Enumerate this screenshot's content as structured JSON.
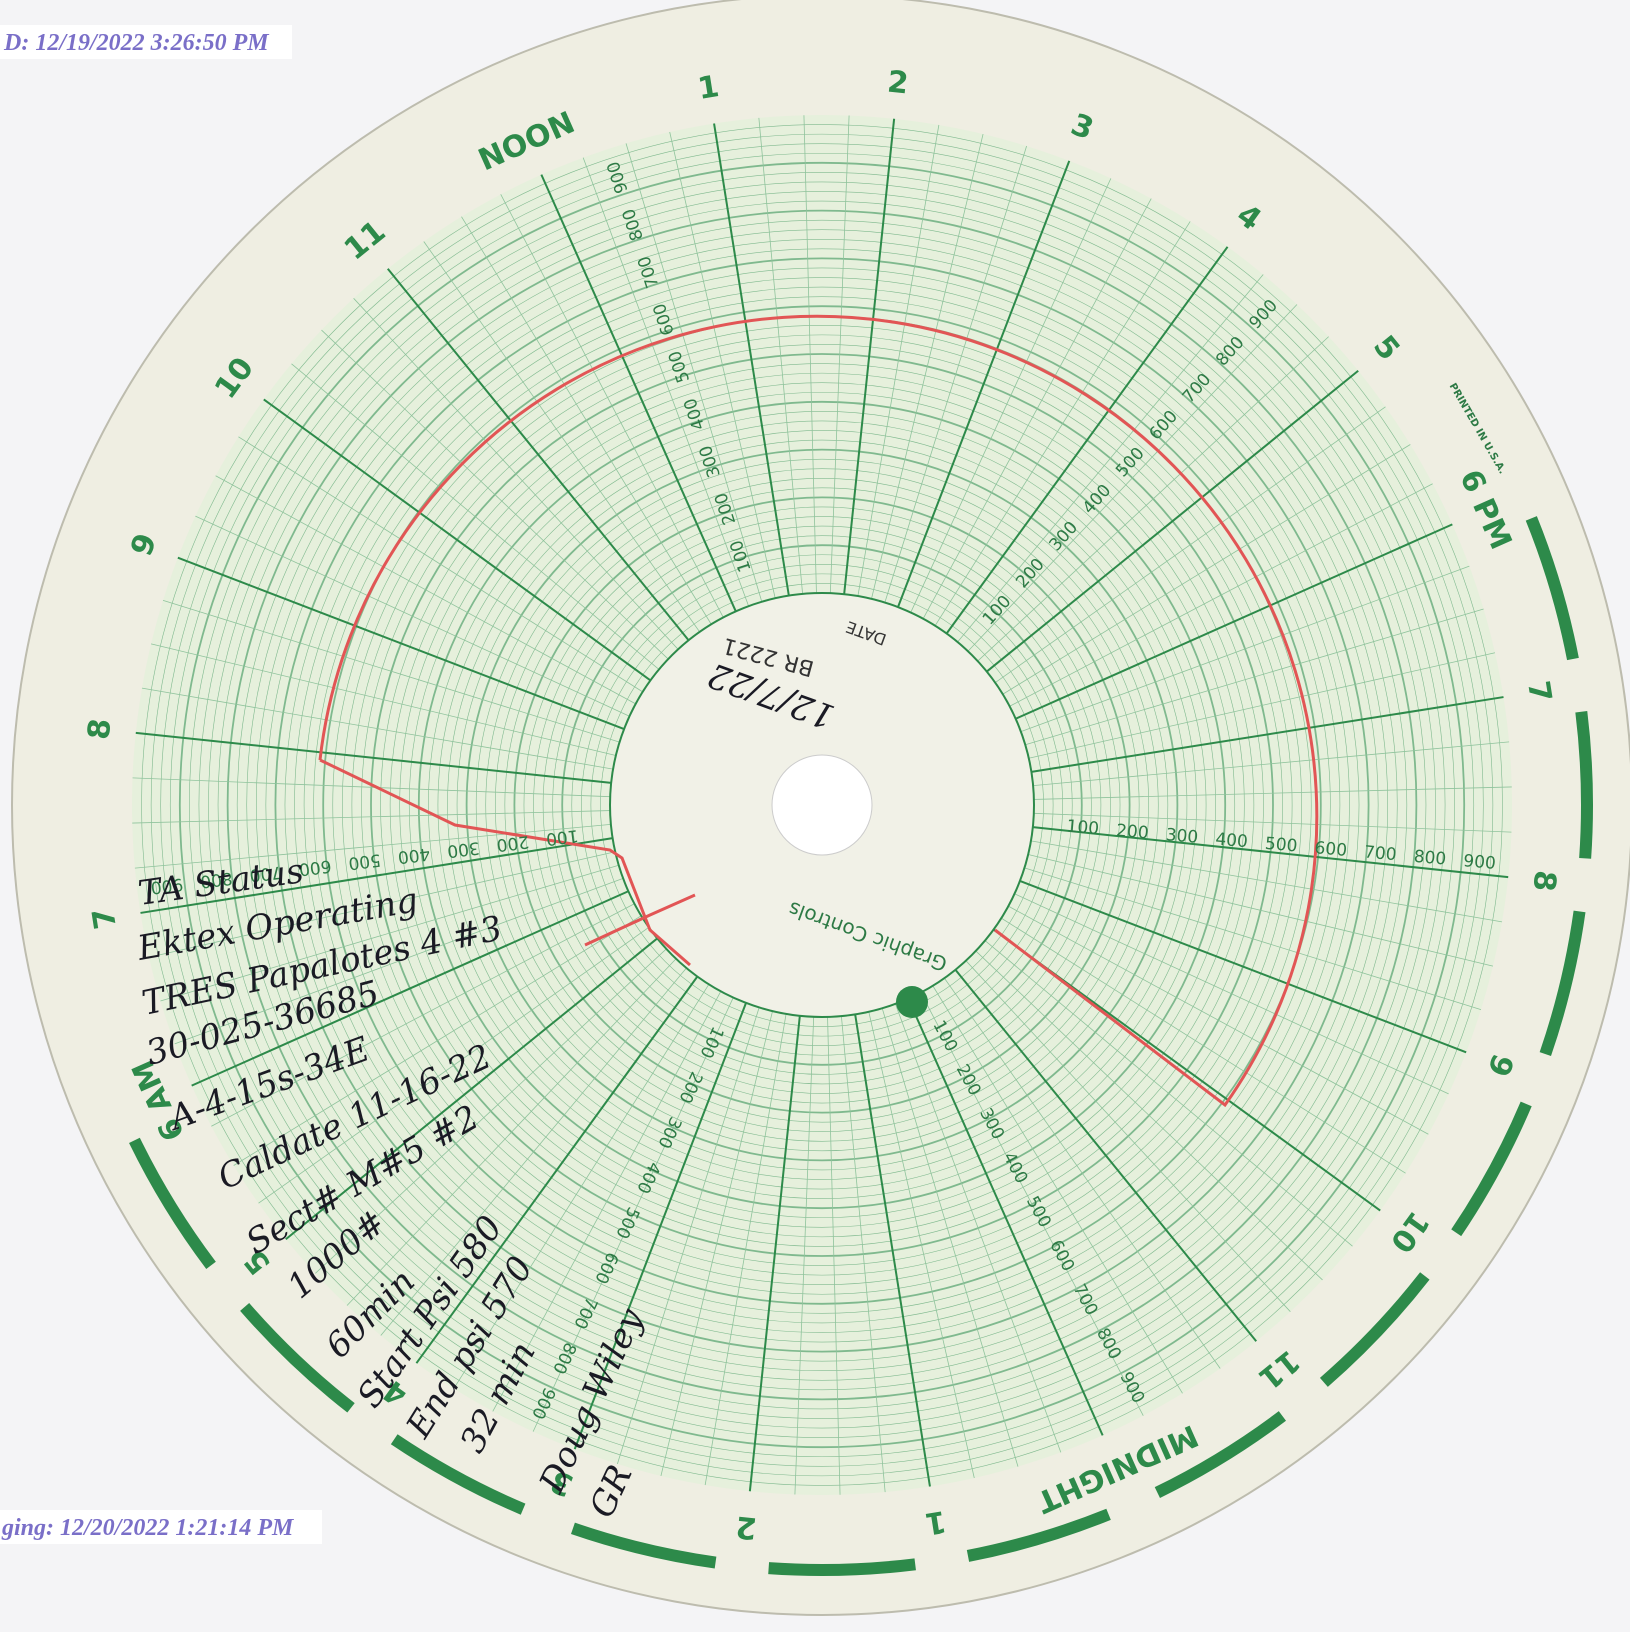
{
  "stamps": {
    "top": "D: 12/19/2022 3:26:50 PM",
    "bottom": "ging: 12/20/2022 1:21:14 PM"
  },
  "chart": {
    "hours": [
      "NOON",
      "1",
      "2",
      "3",
      "4",
      "5",
      "6 PM",
      "7",
      "8",
      "9",
      "10",
      "11",
      "MIDNIGHT",
      "1",
      "2",
      "3",
      "4",
      "5",
      "6 AM",
      "7",
      "8",
      "9",
      "10",
      "11"
    ],
    "scale": [
      "100",
      "200",
      "300",
      "400",
      "500",
      "600",
      "700",
      "800",
      "900"
    ],
    "date_label": "DATE",
    "chart_id": "BR 2221",
    "date_written": "12/7/22",
    "brand": "Graphic Controls",
    "printed": "PRINTED IN U.S.A."
  },
  "notes": [
    "TA Status",
    "Ektex Operating",
    "TRES Papalotes 4 #3",
    "30-025-36685",
    "A-4-15s-34E",
    "Caldate 11-16-22",
    "Sect# M#5 #2",
    "1000#",
    "60min",
    "Start Psi 580",
    "End psi 570",
    "32 min",
    "Doug Wiley",
    "GR"
  ]
}
